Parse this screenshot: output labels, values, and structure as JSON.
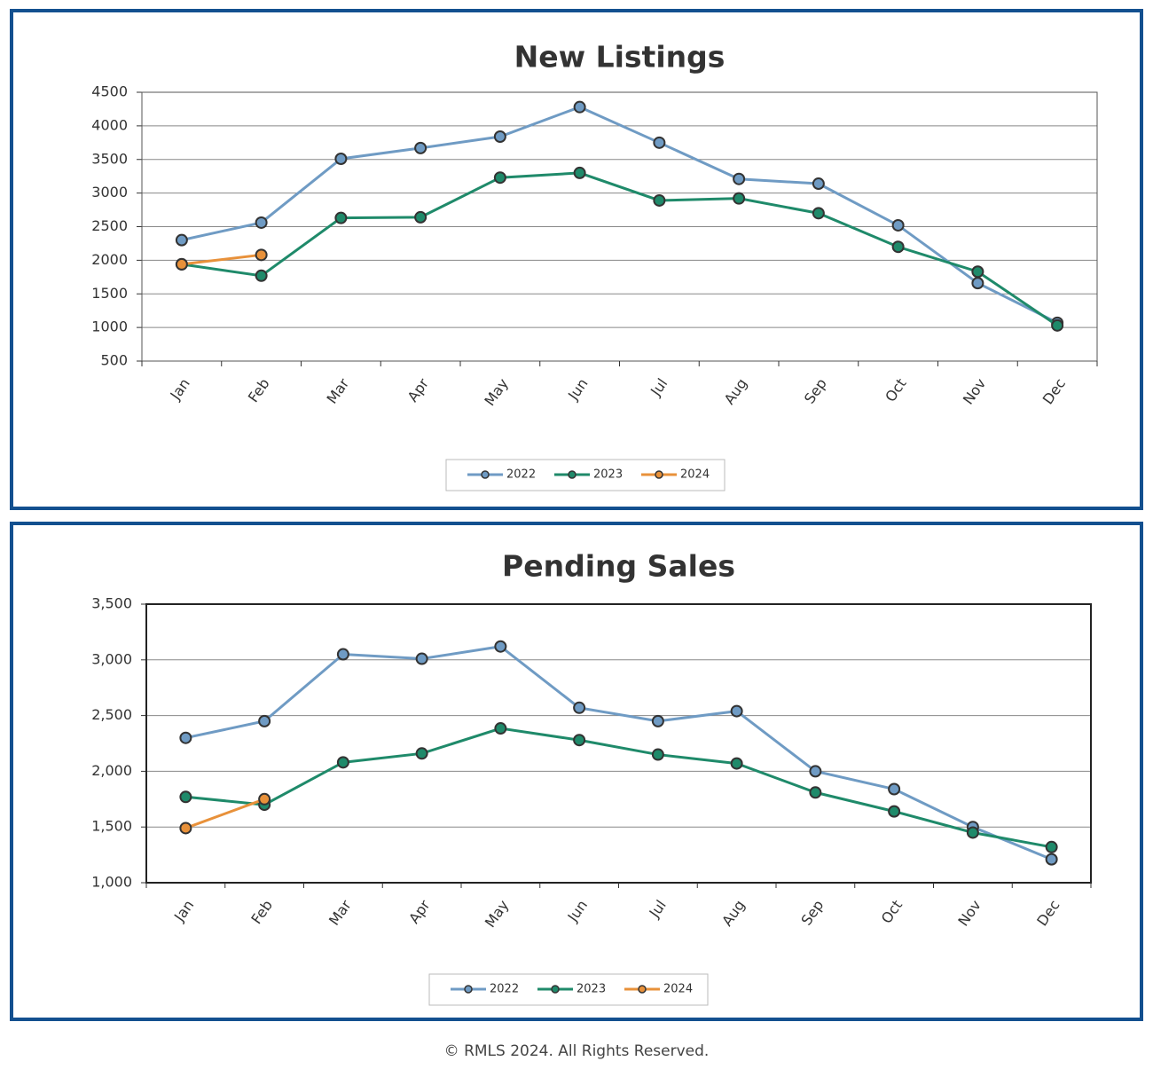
{
  "chart_data": [
    {
      "type": "line",
      "title": "New Listings",
      "categories": [
        "Jan",
        "Feb",
        "Mar",
        "Apr",
        "May",
        "Jun",
        "Jul",
        "Aug",
        "Sep",
        "Oct",
        "Nov",
        "Dec"
      ],
      "series": [
        {
          "name": "2022",
          "color": "#6f9bc4",
          "values": [
            2300,
            2560,
            3510,
            3670,
            3840,
            4280,
            3750,
            3210,
            3140,
            2520,
            1660,
            1070
          ]
        },
        {
          "name": "2023",
          "color": "#1f8a6a",
          "values": [
            1940,
            1770,
            2630,
            2640,
            3230,
            3300,
            2890,
            2920,
            2700,
            2200,
            1830,
            1030
          ]
        },
        {
          "name": "2024",
          "color": "#e8913a",
          "values": [
            1940,
            2080,
            null,
            null,
            null,
            null,
            null,
            null,
            null,
            null,
            null,
            null
          ]
        }
      ],
      "ylim": [
        500,
        4500
      ],
      "yticks": [
        500,
        1000,
        1500,
        2000,
        2500,
        3000,
        3500,
        4000,
        4500
      ],
      "grid": true,
      "legend": "bottom"
    },
    {
      "type": "line",
      "title": "Pending Sales",
      "categories": [
        "Jan",
        "Feb",
        "Mar",
        "Apr",
        "May",
        "Jun",
        "Jul",
        "Aug",
        "Sep",
        "Oct",
        "Nov",
        "Dec"
      ],
      "series": [
        {
          "name": "2022",
          "color": "#6f9bc4",
          "values": [
            2300,
            2450,
            3050,
            3010,
            3120,
            2570,
            2450,
            2540,
            2000,
            1840,
            1500,
            1210
          ]
        },
        {
          "name": "2023",
          "color": "#1f8a6a",
          "values": [
            1770,
            1700,
            2080,
            2160,
            2385,
            2280,
            2150,
            2070,
            1810,
            1640,
            1450,
            1320
          ]
        },
        {
          "name": "2024",
          "color": "#e8913a",
          "values": [
            1490,
            1750,
            null,
            null,
            null,
            null,
            null,
            null,
            null,
            null,
            null,
            null
          ]
        }
      ],
      "ylim": [
        1000,
        3500
      ],
      "yticks": [
        {
          "value": 1000,
          "label": "1,000"
        },
        {
          "value": 1500,
          "label": "1,500"
        },
        {
          "value": 2000,
          "label": "2,000"
        },
        {
          "value": 2500,
          "label": "2,500"
        },
        {
          "value": 3000,
          "label": "3,000"
        },
        {
          "value": 3500,
          "label": "3,500"
        }
      ],
      "grid": true,
      "legend": "bottom"
    }
  ],
  "footer": "© RMLS 2024. All Rights Reserved."
}
